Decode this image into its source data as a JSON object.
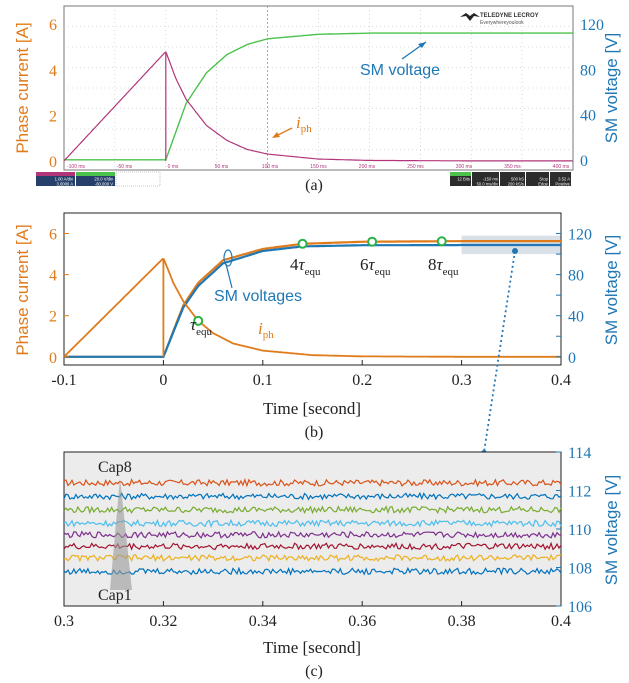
{
  "colors": {
    "orange": "#E07B1B",
    "blue": "#1F77B4",
    "green": "#2BB34A",
    "magenta": "#B2357A",
    "scope_green": "#4CC24C",
    "scope_grid": "#bcbcbc",
    "scope_bg": "#ffffff",
    "zoom_bg": "#ececec",
    "caps": [
      "#D95319",
      "#0072BD",
      "#77AC30",
      "#4DBEEE",
      "#7E2F8E",
      "#A2142F",
      "#EDB120",
      "#0072BD"
    ]
  },
  "panel_a": {
    "brand": "TELEDYNE LECROY",
    "brand_sub": "Everywhereyoulook",
    "left_label": "Phase current [A]",
    "right_label": "SM voltage [V]",
    "annotation_voltage": "SM voltage",
    "annotation_current_base": "i",
    "annotation_current_sub": "ph",
    "caption": "(a)",
    "left_ticks": [
      "0",
      "2",
      "4",
      "6"
    ],
    "right_ticks": [
      "0",
      "40",
      "80",
      "120"
    ],
    "time_ticks": [
      "-100 ms",
      "-50 ms",
      "0 ms",
      "50 ms",
      "100 ms",
      "150 ms",
      "200 ms",
      "250 ms",
      "300 ms",
      "350 ms",
      "400 ms"
    ],
    "status_left": [
      {
        "name": "C1",
        "l1": "1.00 A/div",
        "l2": "3.0000 A"
      },
      {
        "name": "C2",
        "l1": "20.0 V/div",
        "l2": "-60.000 V"
      }
    ],
    "status_right": [
      {
        "name": "HD",
        "l1": "12 Bits",
        "l2": ""
      },
      {
        "name": "Tbase",
        "l1": "-150 ms",
        "l2": "50.0 ms/div"
      },
      {
        "name": "",
        "l1": "500 kS",
        "l2": "200 kS/s"
      },
      {
        "name": "Trigger",
        "l1": "Stop",
        "l2": "Edge"
      },
      {
        "name": "",
        "l1": "3.52 A",
        "l2": "Positive"
      }
    ]
  },
  "panel_b": {
    "left_label": "Phase current [A]",
    "right_label": "SM voltage [V]",
    "xlabel": "Time [second]",
    "caption": "(b)",
    "annotation_voltages": "SM voltages",
    "annotation_current_base": "i",
    "annotation_current_sub": "ph",
    "tau_labels": [
      {
        "mult": "",
        "tau": "τ",
        "sub": "equ"
      },
      {
        "mult": "4",
        "tau": "τ",
        "sub": "equ"
      },
      {
        "mult": "6",
        "tau": "τ",
        "sub": "equ"
      },
      {
        "mult": "8",
        "tau": "τ",
        "sub": "equ"
      }
    ],
    "x_ticks": [
      "-0.1",
      "0",
      "0.1",
      "0.2",
      "0.3",
      "0.4"
    ],
    "left_ticks": [
      "0",
      "2",
      "4",
      "6"
    ],
    "right_ticks": [
      "0",
      "20",
      "40",
      "60",
      "80",
      "100",
      "120"
    ]
  },
  "panel_c": {
    "right_label": "SM voltage [V]",
    "xlabel": "Time [second]",
    "caption": "(c)",
    "cap_top": "Cap8",
    "cap_bottom": "Cap1",
    "x_ticks": [
      "0.3",
      "0.32",
      "0.34",
      "0.36",
      "0.38",
      "0.4"
    ],
    "right_ticks": [
      "106",
      "108",
      "110",
      "112",
      "114"
    ]
  },
  "chart_data": [
    {
      "type": "line",
      "title": "",
      "xlabel": "",
      "ylabel": "Phase current [A]",
      "y2label": "SM voltage [V]",
      "xlim": [
        -0.1,
        0.4
      ],
      "ylim": [
        -0.4,
        6.8
      ],
      "y2lim": [
        -9,
        136
      ],
      "series": [
        {
          "name": "i_ph",
          "axis": "left",
          "x": [
            -0.1,
            0,
            0.01,
            0.02,
            0.04,
            0.06,
            0.08,
            0.1,
            0.15,
            0.2,
            0.3,
            0.4
          ],
          "y": [
            0,
            4.8,
            3.6,
            2.7,
            1.55,
            0.9,
            0.5,
            0.3,
            0.08,
            0.02,
            0,
            0
          ]
        },
        {
          "name": "SM voltage",
          "axis": "right",
          "x": [
            -0.1,
            0,
            0.02,
            0.04,
            0.06,
            0.08,
            0.1,
            0.15,
            0.2,
            0.3,
            0.4
          ],
          "y": [
            0,
            0,
            50,
            77,
            93,
            102,
            107,
            111,
            112,
            112,
            112
          ]
        }
      ]
    },
    {
      "type": "line",
      "title": "",
      "xlabel": "Time [second]",
      "ylabel": "Phase current [A]",
      "y2label": "SM voltage [V]",
      "xlim": [
        -0.1,
        0.4
      ],
      "ylim": [
        -0.4,
        7.0
      ],
      "y2lim": [
        -8,
        140
      ],
      "markers": [
        0.035,
        0.14,
        0.21,
        0.28
      ],
      "series": [
        {
          "name": "i_ph",
          "axis": "left",
          "x": [
            -0.1,
            0,
            0.01,
            0.02,
            0.035,
            0.05,
            0.07,
            0.1,
            0.15,
            0.2,
            0.3,
            0.4
          ],
          "y": [
            0,
            4.8,
            3.6,
            2.7,
            1.75,
            1.15,
            0.65,
            0.3,
            0.08,
            0.02,
            0,
            0
          ]
        },
        {
          "name": "SM voltage (upper)",
          "axis": "right",
          "x": [
            -0.1,
            0,
            0.02,
            0.035,
            0.06,
            0.1,
            0.14,
            0.2,
            0.3,
            0.4
          ],
          "y": [
            0,
            0,
            50,
            72,
            94,
            105,
            110,
            112,
            112.6,
            112.6
          ]
        },
        {
          "name": "SM voltage (lower)",
          "axis": "right",
          "x": [
            -0.1,
            0,
            0.02,
            0.035,
            0.06,
            0.1,
            0.14,
            0.2,
            0.3,
            0.4
          ],
          "y": [
            0,
            0,
            48,
            69,
            91,
            103,
            107.5,
            108.6,
            108.8,
            108.8
          ]
        }
      ]
    },
    {
      "type": "line",
      "title": "",
      "xlabel": "Time [second]",
      "y2label": "SM voltage [V]",
      "xlim": [
        0.3,
        0.4
      ],
      "y2lim": [
        106,
        114
      ],
      "series": [
        {
          "name": "Cap8",
          "values": 112.4
        },
        {
          "name": "",
          "values": 111.7
        },
        {
          "name": "",
          "values": 111.0
        },
        {
          "name": "",
          "values": 110.3
        },
        {
          "name": "",
          "values": 109.7
        },
        {
          "name": "",
          "values": 109.1
        },
        {
          "name": "",
          "values": 108.5
        },
        {
          "name": "Cap1",
          "values": 107.8
        }
      ]
    }
  ]
}
